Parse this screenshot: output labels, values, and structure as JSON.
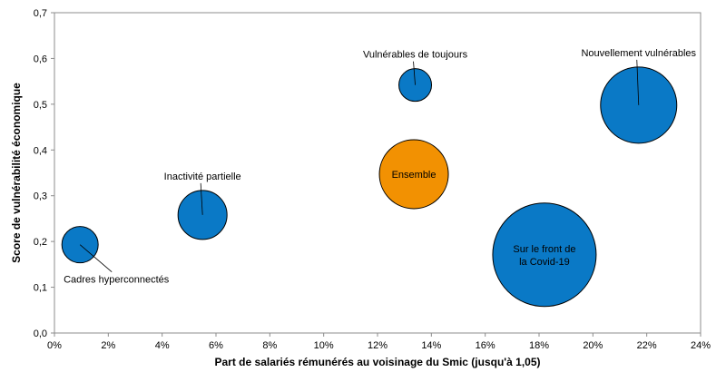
{
  "chart_data": {
    "type": "scatter",
    "subtype": "bubble",
    "title": "",
    "xlabel": "Part de salariés rémunérés au voisinage du Smic (jusqu'à 1,05)",
    "ylabel": "Score de vulnérabilité économique",
    "xlim": [
      0,
      0.24
    ],
    "ylim": [
      0,
      0.7
    ],
    "xticks": [
      0,
      0.02,
      0.04,
      0.06,
      0.08,
      0.1,
      0.12,
      0.14,
      0.16,
      0.18,
      0.2,
      0.22,
      0.24
    ],
    "xtick_labels": [
      "0%",
      "2%",
      "4%",
      "6%",
      "8%",
      "10%",
      "12%",
      "14%",
      "16%",
      "18%",
      "20%",
      "22%",
      "24%"
    ],
    "yticks": [
      0,
      0.1,
      0.2,
      0.3,
      0.4,
      0.5,
      0.6,
      0.7
    ],
    "ytick_labels": [
      "0,0",
      "0,1",
      "0,2",
      "0,3",
      "0,4",
      "0,5",
      "0,6",
      "0,7"
    ],
    "grid": false,
    "legend": "none",
    "colors": {
      "default": "#0a79c6",
      "highlight": "#f29102",
      "outline": "#000000"
    },
    "points": [
      {
        "label": "Cadres hyperconnectés",
        "x": 0.0095,
        "y": 0.193,
        "size": 20,
        "color": "#0a79c6",
        "label_position": "below-right"
      },
      {
        "label": "Inactivité partielle",
        "x": 0.055,
        "y": 0.258,
        "size": 27,
        "color": "#0a79c6",
        "label_position": "above"
      },
      {
        "label": "Vulnérables de toujours",
        "x": 0.134,
        "y": 0.542,
        "size": 18,
        "color": "#0a79c6",
        "label_position": "above"
      },
      {
        "label": "Nouvellement vulnérables",
        "x": 0.217,
        "y": 0.498,
        "size": 42,
        "color": "#0a79c6",
        "label_position": "above"
      },
      {
        "label": "Ensemble",
        "x": 0.1335,
        "y": 0.347,
        "size": 38,
        "color": "#f29102",
        "label_position": "inside"
      },
      {
        "label": "Sur le front de la Covid-19",
        "x": 0.182,
        "y": 0.171,
        "size": 57,
        "color": "#0a79c6",
        "label_position": "inside",
        "label_lines": [
          "Sur le front de",
          "la Covid-19"
        ]
      }
    ]
  }
}
